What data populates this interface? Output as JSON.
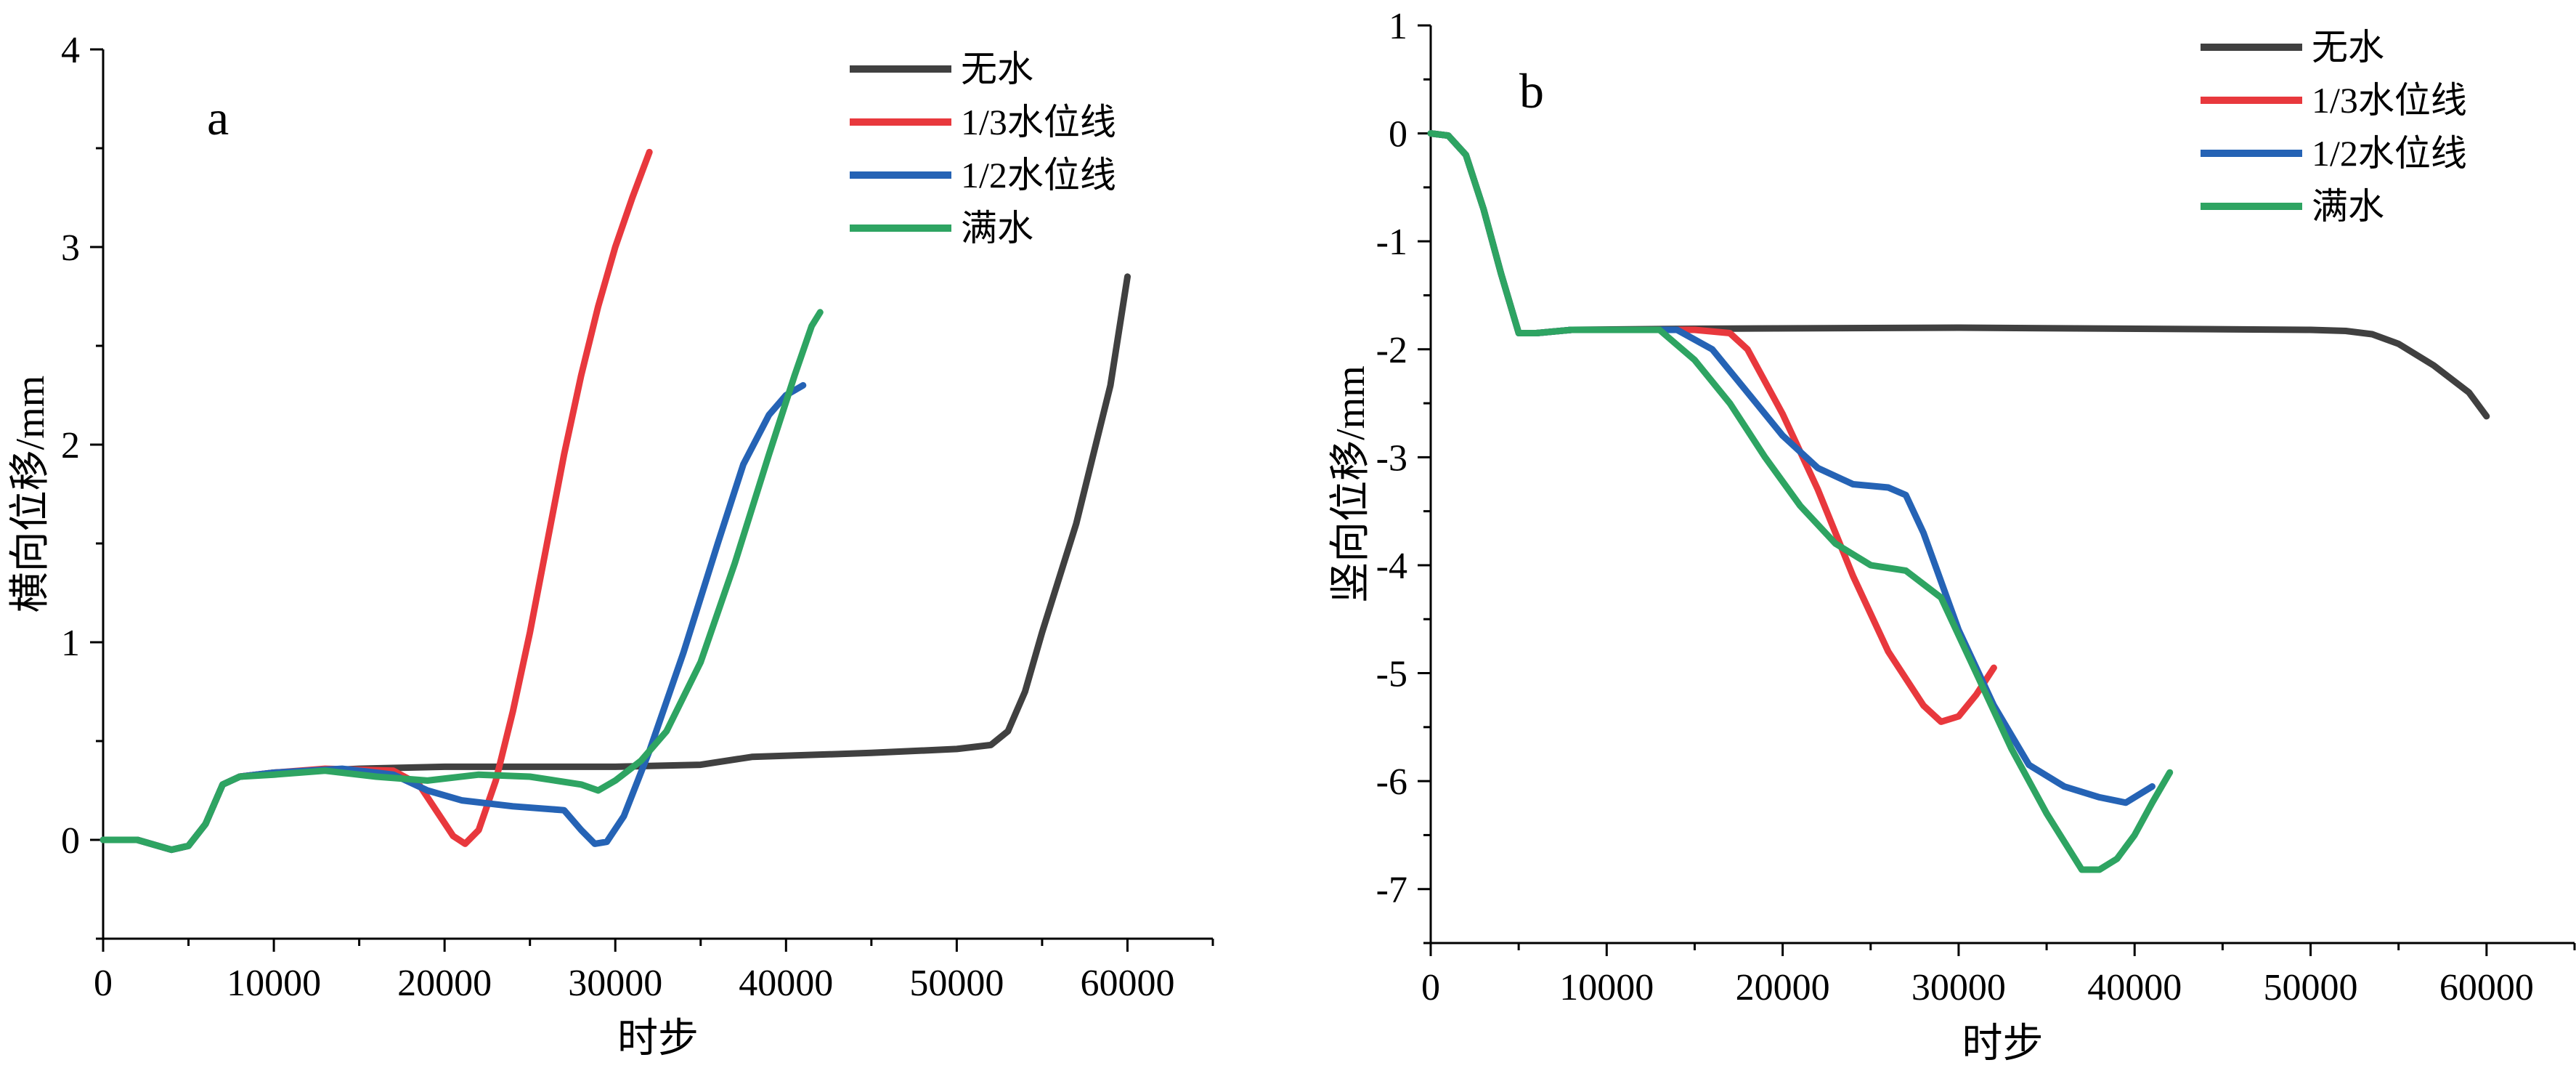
{
  "chart_data": [
    {
      "type": "line",
      "panel_label": "a",
      "xlabel": "时步",
      "ylabel": "横向位移/mm",
      "xlim": [
        0,
        65000
      ],
      "ylim": [
        -0.5,
        4
      ],
      "x_ticks": [
        0,
        10000,
        20000,
        30000,
        40000,
        50000,
        60000
      ],
      "x_tick_labels": [
        "0",
        "10000",
        "20000",
        "30000",
        "40000",
        "50000",
        "60000"
      ],
      "y_ticks": [
        0,
        1,
        2,
        3,
        4
      ],
      "y_tick_labels": [
        "0",
        "1",
        "2",
        "3",
        "4"
      ],
      "grid": false,
      "legend_position": "top-right",
      "series": [
        {
          "name": "无水",
          "color": "#404040",
          "points": [
            [
              0,
              0
            ],
            [
              2000,
              0
            ],
            [
              4000,
              -0.05
            ],
            [
              5000,
              -0.03
            ],
            [
              6000,
              0.08
            ],
            [
              7000,
              0.28
            ],
            [
              8000,
              0.32
            ],
            [
              10000,
              0.34
            ],
            [
              15000,
              0.36
            ],
            [
              20000,
              0.37
            ],
            [
              30000,
              0.37
            ],
            [
              35000,
              0.38
            ],
            [
              38000,
              0.42
            ],
            [
              45000,
              0.44
            ],
            [
              50000,
              0.46
            ],
            [
              52000,
              0.48
            ],
            [
              53000,
              0.55
            ],
            [
              54000,
              0.75
            ],
            [
              55000,
              1.05
            ],
            [
              57000,
              1.6
            ],
            [
              59000,
              2.3
            ],
            [
              60000,
              2.85
            ]
          ]
        },
        {
          "name": "1/3水位线",
          "color": "#e8383d",
          "points": [
            [
              0,
              0
            ],
            [
              2000,
              0
            ],
            [
              4000,
              -0.05
            ],
            [
              5000,
              -0.03
            ],
            [
              6000,
              0.08
            ],
            [
              7000,
              0.28
            ],
            [
              8000,
              0.32
            ],
            [
              10000,
              0.34
            ],
            [
              13000,
              0.36
            ],
            [
              17000,
              0.35
            ],
            [
              18500,
              0.28
            ],
            [
              19500,
              0.15
            ],
            [
              20500,
              0.02
            ],
            [
              21200,
              -0.02
            ],
            [
              22000,
              0.05
            ],
            [
              23000,
              0.3
            ],
            [
              24000,
              0.65
            ],
            [
              25000,
              1.05
            ],
            [
              26000,
              1.5
            ],
            [
              27000,
              1.95
            ],
            [
              28000,
              2.35
            ],
            [
              29000,
              2.7
            ],
            [
              30000,
              3.0
            ],
            [
              31000,
              3.25
            ],
            [
              32000,
              3.48
            ]
          ]
        },
        {
          "name": "1/2水位线",
          "color": "#2563b5",
          "points": [
            [
              0,
              0
            ],
            [
              2000,
              0
            ],
            [
              4000,
              -0.05
            ],
            [
              5000,
              -0.03
            ],
            [
              6000,
              0.08
            ],
            [
              7000,
              0.28
            ],
            [
              8000,
              0.32
            ],
            [
              10000,
              0.34
            ],
            [
              14000,
              0.36
            ],
            [
              17000,
              0.33
            ],
            [
              19000,
              0.25
            ],
            [
              21000,
              0.2
            ],
            [
              24000,
              0.17
            ],
            [
              27000,
              0.15
            ],
            [
              28000,
              0.05
            ],
            [
              28800,
              -0.02
            ],
            [
              29500,
              -0.01
            ],
            [
              30500,
              0.12
            ],
            [
              32000,
              0.45
            ],
            [
              34000,
              0.95
            ],
            [
              36000,
              1.5
            ],
            [
              37500,
              1.9
            ],
            [
              39000,
              2.15
            ],
            [
              40000,
              2.25
            ],
            [
              41000,
              2.3
            ]
          ]
        },
        {
          "name": "满水",
          "color": "#2ea462",
          "points": [
            [
              0,
              0
            ],
            [
              2000,
              0
            ],
            [
              4000,
              -0.05
            ],
            [
              5000,
              -0.03
            ],
            [
              6000,
              0.08
            ],
            [
              7000,
              0.28
            ],
            [
              8000,
              0.32
            ],
            [
              10000,
              0.33
            ],
            [
              13000,
              0.35
            ],
            [
              16000,
              0.32
            ],
            [
              19000,
              0.3
            ],
            [
              22000,
              0.33
            ],
            [
              25000,
              0.32
            ],
            [
              28000,
              0.28
            ],
            [
              29000,
              0.25
            ],
            [
              30000,
              0.3
            ],
            [
              31500,
              0.4
            ],
            [
              33000,
              0.55
            ],
            [
              35000,
              0.9
            ],
            [
              37000,
              1.4
            ],
            [
              39000,
              1.95
            ],
            [
              40500,
              2.35
            ],
            [
              41500,
              2.6
            ],
            [
              42000,
              2.67
            ]
          ]
        }
      ]
    },
    {
      "type": "line",
      "panel_label": "b",
      "xlabel": "时步",
      "ylabel": "竖向位移/mm",
      "xlim": [
        0,
        65000
      ],
      "ylim": [
        -7.5,
        1
      ],
      "x_ticks": [
        0,
        10000,
        20000,
        30000,
        40000,
        50000,
        60000
      ],
      "x_tick_labels": [
        "0",
        "10000",
        "20000",
        "30000",
        "40000",
        "50000",
        "60000"
      ],
      "y_ticks": [
        1,
        0,
        -1,
        -2,
        -3,
        -4,
        -5,
        -6,
        -7
      ],
      "y_tick_labels": [
        "1",
        "0",
        "-1",
        "-2",
        "-3",
        "-4",
        "-5",
        "-6",
        "-7"
      ],
      "grid": false,
      "legend_position": "top-right",
      "series": [
        {
          "name": "无水",
          "color": "#404040",
          "points": [
            [
              0,
              0
            ],
            [
              1000,
              -0.02
            ],
            [
              2000,
              -0.2
            ],
            [
              3000,
              -0.7
            ],
            [
              4000,
              -1.3
            ],
            [
              5000,
              -1.85
            ],
            [
              6000,
              -1.85
            ],
            [
              8000,
              -1.82
            ],
            [
              15000,
              -1.81
            ],
            [
              30000,
              -1.8
            ],
            [
              50000,
              -1.82
            ],
            [
              52000,
              -1.83
            ],
            [
              53500,
              -1.86
            ],
            [
              55000,
              -1.95
            ],
            [
              57000,
              -2.15
            ],
            [
              59000,
              -2.4
            ],
            [
              60000,
              -2.62
            ]
          ]
        },
        {
          "name": "1/3水位线",
          "color": "#e8383d",
          "points": [
            [
              0,
              0
            ],
            [
              1000,
              -0.02
            ],
            [
              2000,
              -0.2
            ],
            [
              3000,
              -0.7
            ],
            [
              4000,
              -1.3
            ],
            [
              5000,
              -1.85
            ],
            [
              6000,
              -1.85
            ],
            [
              8000,
              -1.82
            ],
            [
              15000,
              -1.82
            ],
            [
              17000,
              -1.85
            ],
            [
              18000,
              -2.0
            ],
            [
              20000,
              -2.6
            ],
            [
              22000,
              -3.3
            ],
            [
              24000,
              -4.1
            ],
            [
              26000,
              -4.8
            ],
            [
              28000,
              -5.3
            ],
            [
              29000,
              -5.45
            ],
            [
              30000,
              -5.4
            ],
            [
              31000,
              -5.2
            ],
            [
              32000,
              -4.95
            ]
          ]
        },
        {
          "name": "1/2水位线",
          "color": "#2563b5",
          "points": [
            [
              0,
              0
            ],
            [
              1000,
              -0.02
            ],
            [
              2000,
              -0.2
            ],
            [
              3000,
              -0.7
            ],
            [
              4000,
              -1.3
            ],
            [
              5000,
              -1.85
            ],
            [
              6000,
              -1.85
            ],
            [
              8000,
              -1.82
            ],
            [
              14000,
              -1.82
            ],
            [
              16000,
              -2.0
            ],
            [
              18000,
              -2.4
            ],
            [
              20000,
              -2.8
            ],
            [
              22000,
              -3.1
            ],
            [
              24000,
              -3.25
            ],
            [
              26000,
              -3.28
            ],
            [
              27000,
              -3.35
            ],
            [
              28000,
              -3.7
            ],
            [
              30000,
              -4.6
            ],
            [
              32000,
              -5.3
            ],
            [
              34000,
              -5.85
            ],
            [
              36000,
              -6.05
            ],
            [
              38000,
              -6.15
            ],
            [
              39500,
              -6.2
            ],
            [
              41000,
              -6.05
            ]
          ]
        },
        {
          "name": "满水",
          "color": "#2ea462",
          "points": [
            [
              0,
              0
            ],
            [
              1000,
              -0.02
            ],
            [
              2000,
              -0.2
            ],
            [
              3000,
              -0.7
            ],
            [
              4000,
              -1.3
            ],
            [
              5000,
              -1.85
            ],
            [
              6000,
              -1.85
            ],
            [
              8000,
              -1.82
            ],
            [
              13000,
              -1.82
            ],
            [
              15000,
              -2.1
            ],
            [
              17000,
              -2.5
            ],
            [
              19000,
              -3.0
            ],
            [
              21000,
              -3.45
            ],
            [
              23000,
              -3.8
            ],
            [
              25000,
              -4.0
            ],
            [
              27000,
              -4.05
            ],
            [
              29000,
              -4.3
            ],
            [
              31000,
              -5.0
            ],
            [
              33000,
              -5.7
            ],
            [
              35000,
              -6.3
            ],
            [
              37000,
              -6.82
            ],
            [
              38000,
              -6.82
            ],
            [
              39000,
              -6.72
            ],
            [
              40000,
              -6.5
            ],
            [
              41000,
              -6.2
            ],
            [
              42000,
              -5.92
            ]
          ]
        }
      ]
    }
  ]
}
